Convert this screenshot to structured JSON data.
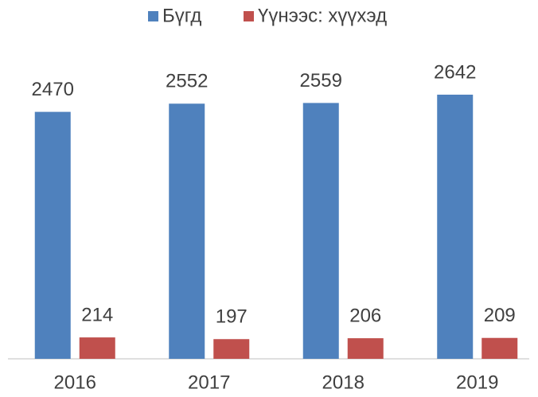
{
  "chart_data": {
    "type": "bar",
    "categories": [
      "2016",
      "2017",
      "2018",
      "2019"
    ],
    "series": [
      {
        "name": "Бүгд",
        "color": "#4f81bd",
        "values": [
          2470,
          2552,
          2559,
          2642
        ]
      },
      {
        "name": "Үүнээс: хүүхэд",
        "color": "#c0504d",
        "values": [
          214,
          197,
          206,
          209
        ]
      }
    ],
    "ylim": [
      0,
      3000
    ],
    "legend": "top"
  }
}
